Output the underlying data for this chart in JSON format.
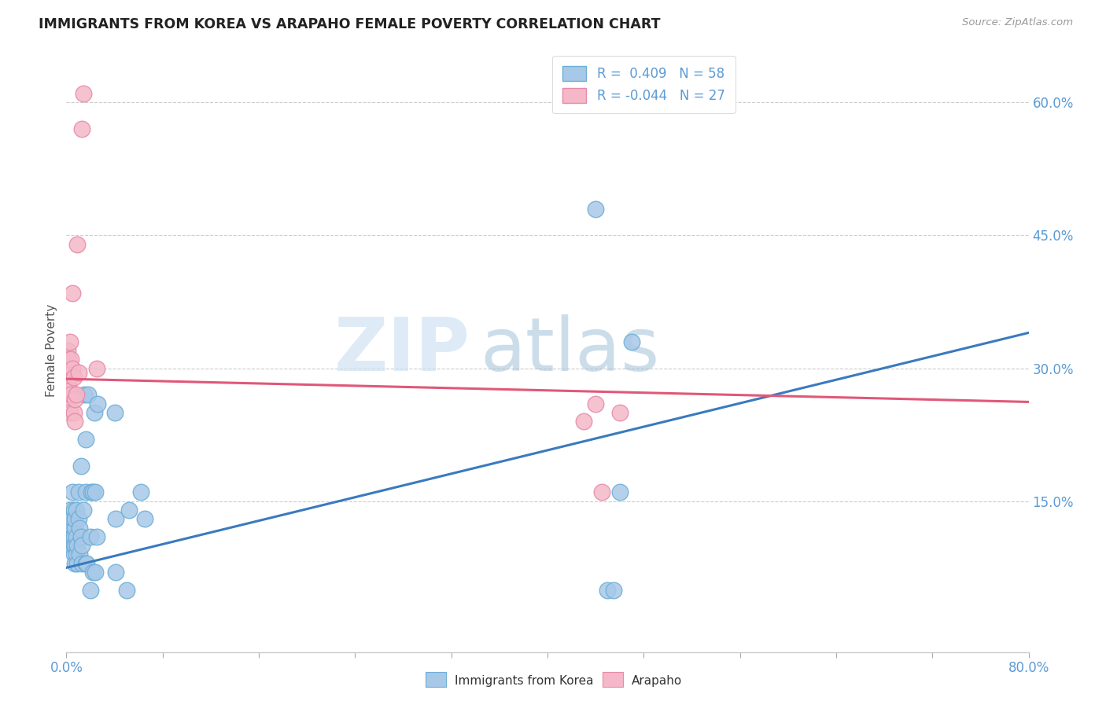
{
  "title": "IMMIGRANTS FROM KOREA VS ARAPAHO FEMALE POVERTY CORRELATION CHART",
  "source": "Source: ZipAtlas.com",
  "ylabel": "Female Poverty",
  "x_min": 0.0,
  "x_max": 0.8,
  "y_min": -0.02,
  "y_max": 0.66,
  "x_ticks_major": [
    0.0,
    0.2,
    0.4,
    0.6,
    0.8
  ],
  "x_ticks_minor": [
    0.0,
    0.08,
    0.16,
    0.24,
    0.32,
    0.4,
    0.48,
    0.56,
    0.64,
    0.72,
    0.8
  ],
  "x_tick_labels": [
    "0.0%",
    "",
    "",
    "",
    "80.0%"
  ],
  "y_ticks_right": [
    0.15,
    0.3,
    0.45,
    0.6
  ],
  "y_tick_labels_right": [
    "15.0%",
    "30.0%",
    "45.0%",
    "60.0%"
  ],
  "blue_R": 0.409,
  "blue_N": 58,
  "pink_R": -0.044,
  "pink_N": 27,
  "blue_color": "#a8c8e8",
  "blue_edge_color": "#6aaed6",
  "pink_color": "#f4b8c8",
  "pink_edge_color": "#e888a8",
  "blue_line_color": "#3a7abf",
  "pink_line_color": "#e05878",
  "legend_label_blue": "Immigrants from Korea",
  "legend_label_pink": "Arapaho",
  "watermark_zip": "ZIP",
  "watermark_atlas": "atlas",
  "blue_dots": [
    [
      0.002,
      0.13
    ],
    [
      0.003,
      0.12
    ],
    [
      0.003,
      0.14
    ],
    [
      0.004,
      0.1
    ],
    [
      0.004,
      0.12
    ],
    [
      0.005,
      0.11
    ],
    [
      0.005,
      0.13
    ],
    [
      0.005,
      0.16
    ],
    [
      0.006,
      0.09
    ],
    [
      0.006,
      0.1
    ],
    [
      0.006,
      0.11
    ],
    [
      0.006,
      0.14
    ],
    [
      0.007,
      0.08
    ],
    [
      0.007,
      0.1
    ],
    [
      0.007,
      0.12
    ],
    [
      0.007,
      0.13
    ],
    [
      0.008,
      0.09
    ],
    [
      0.008,
      0.11
    ],
    [
      0.008,
      0.14
    ],
    [
      0.009,
      0.08
    ],
    [
      0.009,
      0.1
    ],
    [
      0.01,
      0.13
    ],
    [
      0.01,
      0.16
    ],
    [
      0.011,
      0.09
    ],
    [
      0.011,
      0.12
    ],
    [
      0.012,
      0.11
    ],
    [
      0.012,
      0.19
    ],
    [
      0.013,
      0.08
    ],
    [
      0.013,
      0.1
    ],
    [
      0.014,
      0.14
    ],
    [
      0.015,
      0.27
    ],
    [
      0.016,
      0.08
    ],
    [
      0.016,
      0.16
    ],
    [
      0.016,
      0.22
    ],
    [
      0.017,
      0.08
    ],
    [
      0.018,
      0.27
    ],
    [
      0.02,
      0.05
    ],
    [
      0.02,
      0.11
    ],
    [
      0.021,
      0.16
    ],
    [
      0.022,
      0.07
    ],
    [
      0.022,
      0.16
    ],
    [
      0.023,
      0.25
    ],
    [
      0.024,
      0.07
    ],
    [
      0.024,
      0.16
    ],
    [
      0.025,
      0.11
    ],
    [
      0.026,
      0.26
    ],
    [
      0.04,
      0.25
    ],
    [
      0.041,
      0.13
    ],
    [
      0.041,
      0.07
    ],
    [
      0.05,
      0.05
    ],
    [
      0.052,
      0.14
    ],
    [
      0.062,
      0.16
    ],
    [
      0.065,
      0.13
    ],
    [
      0.44,
      0.48
    ],
    [
      0.45,
      0.05
    ],
    [
      0.455,
      0.05
    ],
    [
      0.46,
      0.16
    ],
    [
      0.47,
      0.33
    ]
  ],
  "pink_dots": [
    [
      0.001,
      0.28
    ],
    [
      0.001,
      0.295
    ],
    [
      0.001,
      0.32
    ],
    [
      0.002,
      0.265
    ],
    [
      0.002,
      0.285
    ],
    [
      0.002,
      0.31
    ],
    [
      0.003,
      0.25
    ],
    [
      0.003,
      0.275
    ],
    [
      0.003,
      0.33
    ],
    [
      0.004,
      0.27
    ],
    [
      0.004,
      0.31
    ],
    [
      0.005,
      0.385
    ],
    [
      0.005,
      0.3
    ],
    [
      0.006,
      0.25
    ],
    [
      0.006,
      0.29
    ],
    [
      0.007,
      0.24
    ],
    [
      0.007,
      0.265
    ],
    [
      0.008,
      0.27
    ],
    [
      0.009,
      0.44
    ],
    [
      0.01,
      0.295
    ],
    [
      0.013,
      0.57
    ],
    [
      0.014,
      0.61
    ],
    [
      0.025,
      0.3
    ],
    [
      0.43,
      0.24
    ],
    [
      0.44,
      0.26
    ],
    [
      0.445,
      0.16
    ],
    [
      0.46,
      0.25
    ]
  ],
  "blue_trend": {
    "x_start": 0.0,
    "y_start": 0.075,
    "x_end": 0.8,
    "y_end": 0.34
  },
  "pink_trend": {
    "x_start": 0.0,
    "y_start": 0.288,
    "x_end": 0.8,
    "y_end": 0.262
  }
}
